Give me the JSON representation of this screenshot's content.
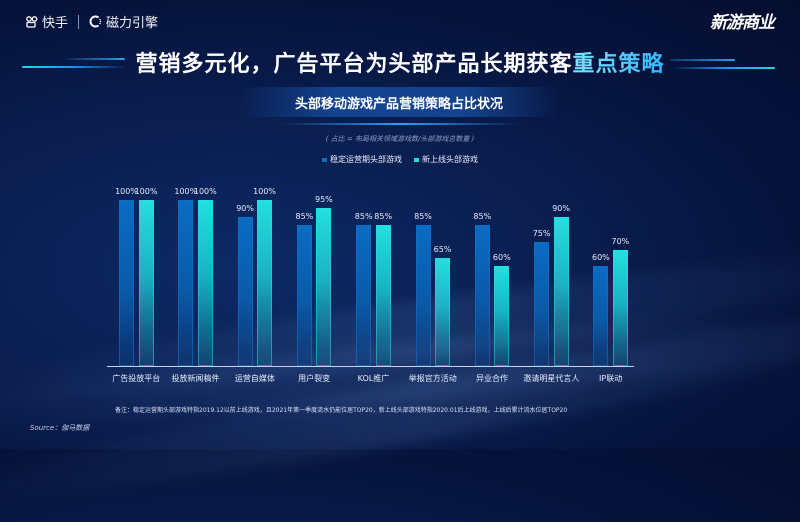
{
  "header": {
    "logo_left": "快手",
    "logo_divider": "|",
    "logo_right": "磁力引擎",
    "brand_right": "新游商业"
  },
  "title": {
    "main_white": "营销多元化，广告平台为头部产品长期获客",
    "main_highlight": "重点策略",
    "subtitle": "头部移动游戏产品营销策略占比状况",
    "formula_note": "( 占比 = 布局相关领域游戏数/头部游戏总数量 )"
  },
  "colors": {
    "background": "#06143d",
    "series1": "#0a6cc4",
    "series2": "#22e0df",
    "title_highlight": "#2fb7ff"
  },
  "chart_data": {
    "type": "bar",
    "title": "头部移动游戏产品营销策略占比状况",
    "subtitle": "( 占比 = 布局相关领域游戏数/头部游戏总数量 )",
    "xlabel": "",
    "ylabel": "",
    "ylim": [
      0,
      100
    ],
    "grid": false,
    "legend_position": "top",
    "value_format": "percent",
    "categories": [
      "广告投放平台",
      "投放新闻稿件",
      "运营自媒体",
      "用户裂变",
      "KOL推广",
      "举报官方活动",
      "异业合作",
      "邀请明星代言人",
      "IP联动"
    ],
    "series": [
      {
        "name": "稳定运营期头部游戏",
        "values": [
          100,
          100,
          90,
          85,
          85,
          85,
          85,
          75,
          60
        ],
        "labels": [
          "100%",
          "100%",
          "90%",
          "85%",
          "85%",
          "85%",
          "85%",
          "75%",
          "60%"
        ]
      },
      {
        "name": "新上线头部游戏",
        "values": [
          100,
          100,
          100,
          95,
          85,
          65,
          60,
          90,
          70
        ],
        "labels": [
          "100%",
          "100%",
          "100%",
          "95%",
          "85%",
          "65%",
          "60%",
          "90%",
          "70%"
        ]
      }
    ]
  },
  "footer": {
    "note": "备注：稳定运营期头部游戏特指2019.12以前上线游戏，且2021年第一季度流水仍能位居TOP20，新上线头部游戏特指2020.01后上线游戏，上线后累计流水位居TOP20",
    "source": "Source：伽马数据"
  }
}
